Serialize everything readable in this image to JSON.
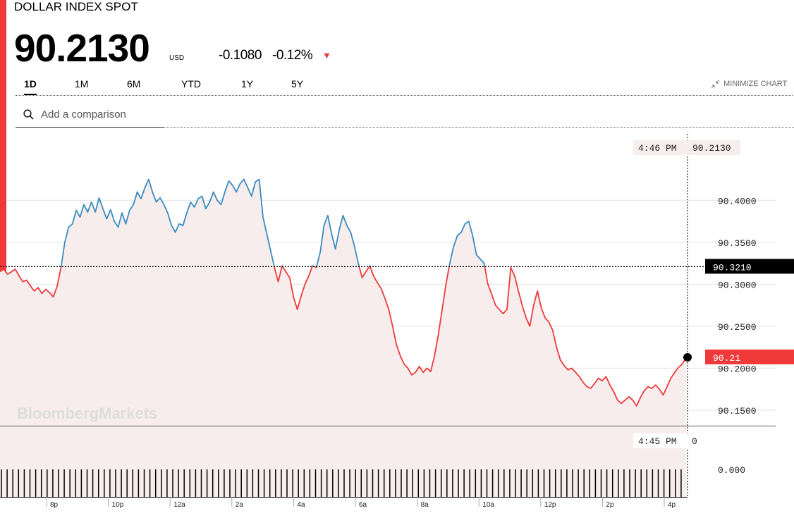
{
  "header": {
    "title": "DOLLAR INDEX SPOT",
    "price": "90.2130",
    "currency": "USD",
    "change": "-0.1080",
    "change_pct": "-0.12%"
  },
  "tabs": [
    "1D",
    "1M",
    "6M",
    "YTD",
    "1Y",
    "5Y"
  ],
  "active_tab": "1D",
  "minimize_label": "MINIMIZE CHART",
  "search": {
    "placeholder": "Add a comparison"
  },
  "watermark": "BloombergMarkets",
  "colors": {
    "down": "#f03a3a",
    "up": "#3a8cbf",
    "fill": "#f7eded",
    "accent": "#f03a3a"
  },
  "chart_data": {
    "type": "line",
    "series": [
      {
        "values": [
          90.315,
          90.318,
          90.312,
          90.315,
          90.318,
          90.31,
          90.303,
          90.305,
          90.298,
          90.292,
          90.296,
          90.289,
          90.294,
          90.29,
          90.285,
          90.298,
          90.32,
          90.35,
          90.368,
          90.372,
          90.388,
          90.38,
          90.395,
          90.386,
          90.398,
          90.386,
          90.403,
          90.39,
          90.378,
          90.389,
          90.375,
          90.368,
          90.385,
          90.372,
          90.388,
          90.395,
          90.41,
          90.402,
          90.415,
          90.425,
          90.41,
          90.398,
          90.403,
          90.395,
          90.385,
          90.37,
          90.362,
          90.372,
          90.37,
          90.385,
          90.398,
          90.392,
          90.402,
          90.405,
          90.39,
          90.398,
          90.41,
          90.4,
          90.395,
          90.41,
          90.423,
          90.418,
          90.41,
          90.42,
          90.425,
          90.415,
          90.405,
          90.422,
          90.425,
          90.38,
          90.36,
          90.34,
          90.32,
          90.303,
          90.322,
          90.315,
          90.308,
          90.285,
          90.27,
          90.286,
          90.3,
          90.31,
          90.322,
          90.32,
          90.338,
          90.37,
          90.382,
          90.36,
          90.342,
          90.365,
          90.382,
          90.37,
          90.362,
          90.345,
          90.325,
          90.308,
          90.315,
          90.322,
          90.31,
          90.302,
          90.295,
          90.283,
          90.27,
          90.25,
          90.228,
          90.215,
          90.205,
          90.2,
          90.192,
          90.195,
          90.202,
          90.195,
          90.2,
          90.196,
          90.215,
          90.24,
          90.27,
          90.3,
          90.325,
          90.345,
          90.358,
          90.362,
          90.372,
          90.375,
          90.358,
          90.335,
          90.33,
          90.325,
          90.3,
          90.288,
          90.275,
          90.27,
          90.265,
          90.27,
          90.32,
          90.31,
          90.292,
          90.275,
          90.26,
          90.25,
          90.275,
          90.292,
          90.272,
          90.26,
          90.255,
          90.245,
          90.225,
          90.21,
          90.203,
          90.198,
          90.2,
          90.195,
          90.19,
          90.183,
          90.178,
          90.176,
          90.182,
          90.188,
          90.185,
          90.19,
          90.18,
          90.172,
          90.162,
          90.158,
          90.162,
          90.166,
          90.162,
          90.155,
          90.165,
          90.173,
          90.178,
          90.176,
          90.18,
          90.175,
          90.168,
          90.178,
          90.188,
          90.195,
          90.201,
          90.205,
          90.213
        ],
        "color": "#f03a3a"
      }
    ],
    "x_ticks": [
      "8p",
      "10p",
      "12a",
      "2a",
      "4a",
      "6a",
      "8a",
      "10a",
      "12p",
      "2p",
      "4p"
    ],
    "y_ticks": [
      "90.4000",
      "90.3500",
      "90.3000",
      "90.2500",
      "90.2000",
      "90.1500"
    ],
    "ylim": [
      90.1315,
      90.4775
    ],
    "previous_close": "90.3210",
    "last_label": "90.21",
    "tooltip_top": {
      "time": "4:46 PM",
      "value": "90.2130"
    },
    "tooltip_bottom": {
      "time": "4:45 PM",
      "value": "0"
    },
    "volume_axis_label": "0.000",
    "grid": true
  }
}
